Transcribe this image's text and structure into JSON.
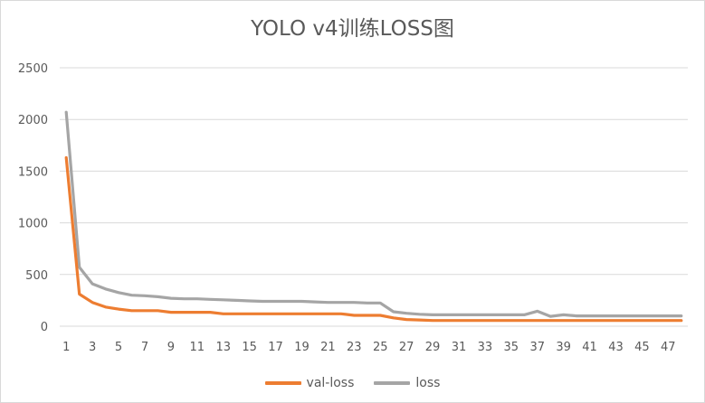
{
  "chart_data": {
    "type": "line",
    "title": "YOLO v4训练LOSS图",
    "categories": [
      "1",
      "2",
      "3",
      "4",
      "5",
      "6",
      "7",
      "8",
      "9",
      "10",
      "11",
      "12",
      "13",
      "14",
      "15",
      "16",
      "17",
      "18",
      "19",
      "20",
      "21",
      "22",
      "23",
      "24",
      "25",
      "26",
      "27",
      "28",
      "29",
      "30",
      "31",
      "32",
      "33",
      "34",
      "35",
      "36",
      "37",
      "38",
      "39",
      "40",
      "41",
      "42",
      "43",
      "44",
      "45",
      "46",
      "47",
      "48"
    ],
    "x_tick_labels": [
      "1",
      "3",
      "5",
      "7",
      "9",
      "11",
      "13",
      "15",
      "17",
      "19",
      "21",
      "23",
      "25",
      "27",
      "29",
      "31",
      "33",
      "35",
      "37",
      "39",
      "41",
      "43",
      "45",
      "47"
    ],
    "y_ticks": [
      "0",
      "500",
      "1000",
      "1500",
      "2000",
      "2500"
    ],
    "ylim": [
      0,
      2500
    ],
    "grid": true,
    "legend_position": "bottom",
    "series": [
      {
        "name": "val-loss",
        "color": "#ed7d31",
        "values": [
          1630,
          310,
          230,
          185,
          165,
          150,
          150,
          150,
          135,
          135,
          135,
          135,
          120,
          120,
          120,
          120,
          120,
          120,
          120,
          120,
          120,
          120,
          105,
          105,
          105,
          80,
          65,
          60,
          55,
          55,
          55,
          55,
          55,
          55,
          55,
          55,
          55,
          55,
          55,
          55,
          55,
          55,
          55,
          55,
          55,
          55,
          55,
          55
        ]
      },
      {
        "name": "loss",
        "color": "#a5a5a5",
        "values": [
          2070,
          570,
          410,
          360,
          325,
          300,
          295,
          285,
          270,
          265,
          265,
          260,
          255,
          250,
          245,
          240,
          240,
          240,
          240,
          235,
          230,
          230,
          230,
          225,
          225,
          140,
          125,
          115,
          110,
          110,
          110,
          110,
          110,
          110,
          110,
          110,
          145,
          95,
          110,
          100,
          100,
          100,
          100,
          100,
          100,
          100,
          100,
          100
        ]
      }
    ]
  }
}
